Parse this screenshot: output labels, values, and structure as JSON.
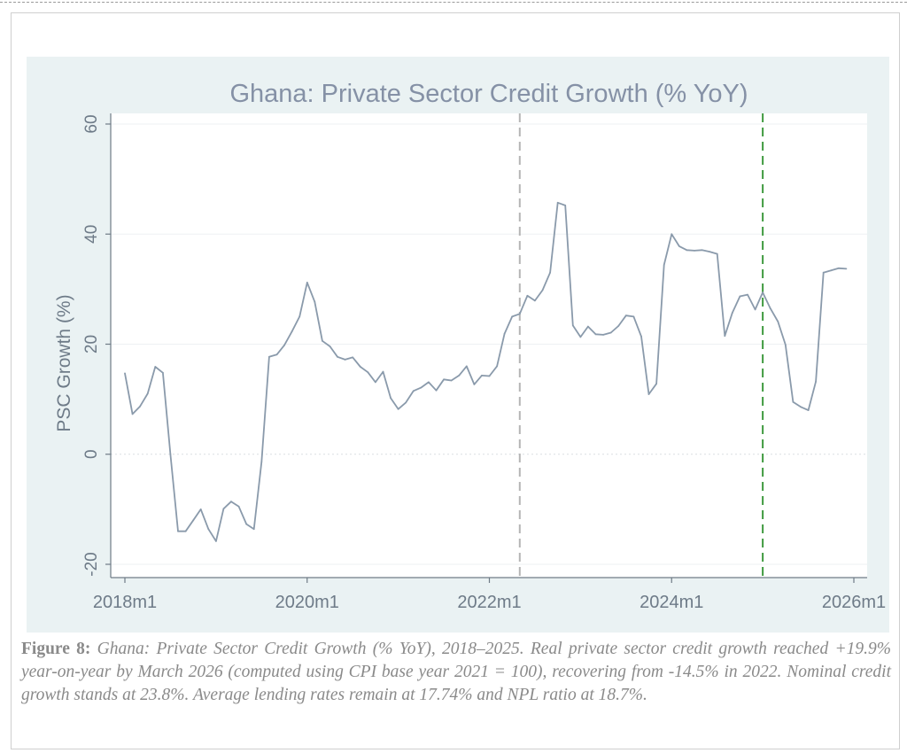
{
  "chart_data": {
    "type": "line",
    "title": "Ghana: Private Sector Credit Growth (% YoY)",
    "xlabel": "",
    "ylabel": "PSC Growth (%)",
    "xlim": [
      "2018m1",
      "2026m1"
    ],
    "ylim": [
      -22,
      60
    ],
    "yticks": [
      -20,
      0,
      20,
      40,
      60
    ],
    "xtick_labels": [
      "2018m1",
      "2020m1",
      "2022m1",
      "2024m1",
      "2026m1"
    ],
    "grid": true,
    "reference_lines": [
      {
        "x": "2022m5",
        "style": "dashed",
        "color": "#b5b5b5"
      },
      {
        "x": "2025m1",
        "style": "dashed",
        "color": "#3f9a3f"
      }
    ],
    "series_color": "#8a9aab",
    "x": [
      "2018m1",
      "2018m2",
      "2018m3",
      "2018m4",
      "2018m5",
      "2018m6",
      "2018m7",
      "2018m8",
      "2018m9",
      "2018m10",
      "2018m11",
      "2018m12",
      "2019m1",
      "2019m2",
      "2019m3",
      "2019m4",
      "2019m5",
      "2019m6",
      "2019m7",
      "2019m8",
      "2019m9",
      "2019m10",
      "2019m11",
      "2019m12",
      "2020m1",
      "2020m2",
      "2020m3",
      "2020m4",
      "2020m5",
      "2020m6",
      "2020m7",
      "2020m8",
      "2020m9",
      "2020m10",
      "2020m11",
      "2020m12",
      "2021m1",
      "2021m2",
      "2021m3",
      "2021m4",
      "2021m5",
      "2021m6",
      "2021m7",
      "2021m8",
      "2021m9",
      "2021m10",
      "2021m11",
      "2021m12",
      "2022m1",
      "2022m2",
      "2022m3",
      "2022m4",
      "2022m5",
      "2022m6",
      "2022m7",
      "2022m8",
      "2022m9",
      "2022m10",
      "2022m11",
      "2022m12",
      "2023m1",
      "2023m2",
      "2023m3",
      "2023m4",
      "2023m5",
      "2023m6",
      "2023m7",
      "2023m8",
      "2023m9",
      "2023m10",
      "2023m11",
      "2023m12",
      "2024m1",
      "2024m2",
      "2024m3",
      "2024m4",
      "2024m5",
      "2024m6",
      "2024m7",
      "2024m8",
      "2024m9",
      "2024m10",
      "2024m11",
      "2024m12",
      "2025m1",
      "2025m2",
      "2025m3",
      "2025m4",
      "2025m5",
      "2025m6",
      "2025m7",
      "2025m8",
      "2025m9",
      "2025m10",
      "2025m11",
      "2025m12"
    ],
    "values": [
      14.7,
      7.3,
      8.7,
      11.0,
      15.9,
      14.8,
      0.0,
      -14.0,
      -14.0,
      -12.0,
      -10.0,
      -13.6,
      -15.8,
      -9.9,
      -8.6,
      -9.5,
      -12.7,
      -13.6,
      -1.4,
      17.7,
      18.1,
      19.8,
      22.3,
      25.0,
      31.2,
      27.7,
      20.6,
      19.6,
      17.7,
      17.2,
      17.6,
      15.9,
      14.9,
      13.1,
      15.0,
      10.2,
      8.2,
      9.4,
      11.5,
      12.1,
      13.1,
      11.6,
      13.6,
      13.4,
      14.3,
      16.0,
      12.7,
      14.3,
      14.2,
      16.0,
      21.9,
      25.0,
      25.5,
      28.8,
      27.9,
      29.8,
      33.0,
      45.7,
      45.2,
      23.4,
      21.3,
      23.2,
      21.8,
      21.7,
      22.1,
      23.3,
      25.2,
      25.0,
      21.4,
      10.9,
      12.8,
      34.4,
      40.0,
      37.8,
      37.1,
      37.0,
      37.1,
      36.8,
      36.4,
      21.5,
      25.7,
      28.7,
      29.0,
      26.3,
      29.4,
      26.5,
      24.1,
      19.9,
      9.5,
      8.6,
      8.0,
      13.2,
      33.0,
      33.4,
      33.8,
      33.7
    ]
  },
  "caption": {
    "label": "Figure 8:",
    "text": "Ghana: Private Sector Credit Growth (% YoY), 2018–2025. Real private sector credit growth reached +19.9% year-on-year by March 2026 (computed using CPI base year 2021 = 100), recovering from -14.5% in 2022. Nominal credit growth stands at 23.8%. Average lending rates remain at 17.74% and NPL ratio at 18.7%."
  }
}
